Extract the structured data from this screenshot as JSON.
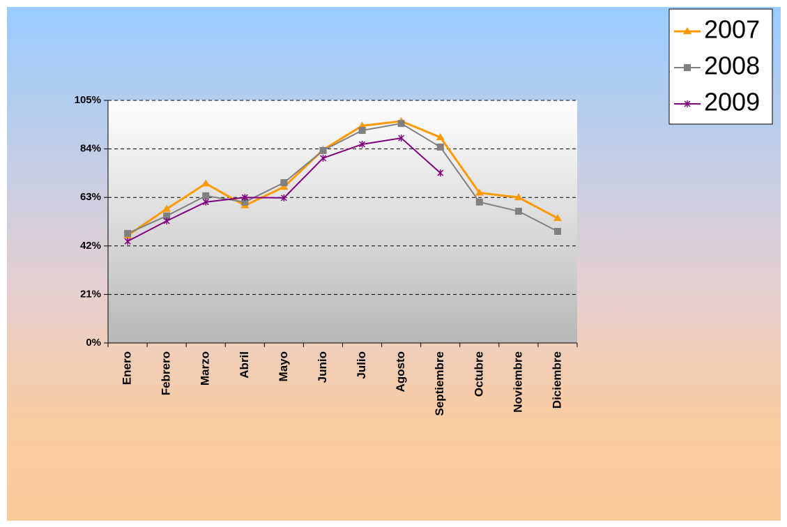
{
  "chart_data": {
    "type": "line",
    "categories": [
      "Enero",
      "Febrero",
      "Marzo",
      "Abril",
      "Mayo",
      "Junio",
      "Julio",
      "Agosto",
      "Septiembre",
      "Octubre",
      "Noviembre",
      "Diciembre"
    ],
    "series": [
      {
        "name": "2007",
        "color": "#ff9900",
        "marker": "triangle",
        "values": [
          46.5,
          58,
          69,
          59.5,
          67.5,
          83.6,
          94,
          96,
          89,
          65,
          63,
          54
        ]
      },
      {
        "name": "2008",
        "color": "#808080",
        "marker": "square",
        "values": [
          47.4,
          55,
          63.7,
          61,
          69.4,
          83.3,
          92,
          95,
          84.8,
          61,
          57,
          48.3
        ]
      },
      {
        "name": "2009",
        "color": "#800080",
        "marker": "star",
        "values": [
          44,
          52.8,
          61,
          63,
          62.8,
          80,
          86,
          88.7,
          73.6,
          null,
          null,
          null
        ]
      }
    ],
    "ylim": [
      0,
      105
    ],
    "yticks": [
      {
        "value": 0,
        "label": "0%"
      },
      {
        "value": 21,
        "label": "21%"
      },
      {
        "value": 42,
        "label": "42%"
      },
      {
        "value": 63,
        "label": "63%"
      },
      {
        "value": 84,
        "label": "84%"
      },
      {
        "value": 105,
        "label": "105%"
      }
    ],
    "grid": true,
    "legend": "top-right"
  }
}
